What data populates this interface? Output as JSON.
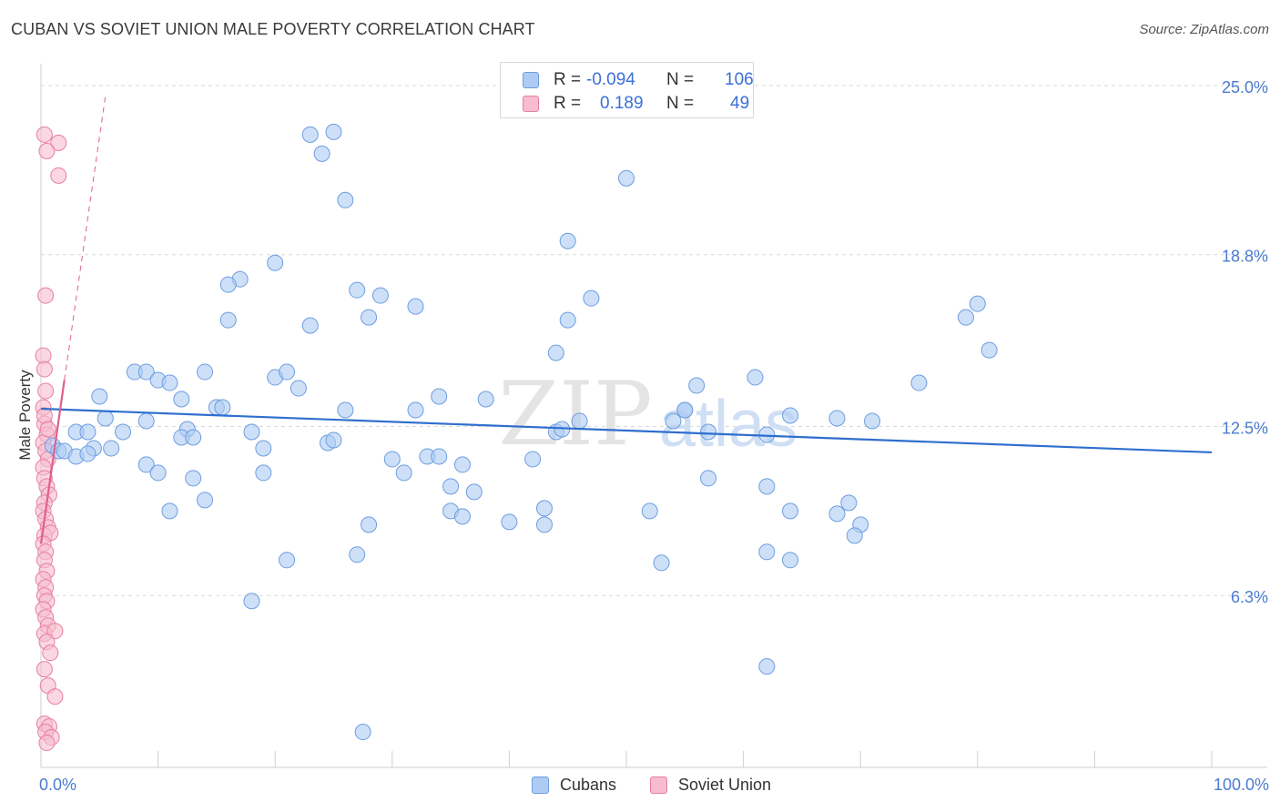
{
  "title": "CUBAN VS SOVIET UNION MALE POVERTY CORRELATION CHART",
  "source": "Source: ZipAtlas.com",
  "watermark": {
    "zip": "ZIP",
    "atlas": "atlas"
  },
  "legend": {
    "rows": [
      {
        "r_label": "R =",
        "r_value": "-0.094",
        "n_label": "N =",
        "n_value": "106"
      },
      {
        "r_label": "R =",
        "r_value": "0.189",
        "n_label": "N =",
        "n_value": "49"
      }
    ]
  },
  "colors": {
    "cubans_fill": "#aecbf3",
    "cubans_stroke": "#6d9de0",
    "cubans_line": "#2f6fce",
    "soviet_fill": "#f7bccd",
    "soviet_stroke": "#e87fa2",
    "soviet_line": "#e0608e",
    "tick_text": "#4a7bd0",
    "grid": "#d9d9d9"
  },
  "chart_data": {
    "type": "scatter",
    "title": "CUBAN VS SOVIET UNION MALE POVERTY CORRELATION CHART",
    "xlabel": "",
    "ylabel": "Male Poverty",
    "xlim": [
      0,
      100
    ],
    "ylim": [
      0,
      25.8
    ],
    "y_ticks": [
      {
        "value": 6.3,
        "label": "6.3%"
      },
      {
        "value": 12.5,
        "label": "12.5%"
      },
      {
        "value": 18.8,
        "label": "18.8%"
      },
      {
        "value": 25.0,
        "label": "25.0%"
      }
    ],
    "x_tick_labels": {
      "min": "0.0%",
      "max": "100.0%"
    },
    "grid": true,
    "legend_position": "top-center",
    "series": [
      {
        "name": "Cubans",
        "trend": {
          "x": [
            0,
            100
          ],
          "y": [
            13.15,
            11.55
          ]
        },
        "points": [
          [
            23.0,
            23.2
          ],
          [
            25.0,
            23.3
          ],
          [
            24.0,
            22.5
          ],
          [
            26.0,
            20.8
          ],
          [
            50.0,
            21.6
          ],
          [
            45.0,
            19.3
          ],
          [
            20.0,
            18.5
          ],
          [
            17.0,
            17.9
          ],
          [
            16.0,
            17.7
          ],
          [
            27.0,
            17.5
          ],
          [
            29.0,
            17.3
          ],
          [
            47.0,
            17.2
          ],
          [
            32.0,
            16.9
          ],
          [
            16.0,
            16.4
          ],
          [
            28.0,
            16.5
          ],
          [
            23.0,
            16.2
          ],
          [
            45.0,
            16.4
          ],
          [
            80.0,
            17.0
          ],
          [
            79.0,
            16.5
          ],
          [
            81.0,
            15.3
          ],
          [
            44.0,
            15.2
          ],
          [
            8.0,
            14.5
          ],
          [
            9.0,
            14.5
          ],
          [
            10.0,
            14.2
          ],
          [
            11.0,
            14.1
          ],
          [
            14.0,
            14.5
          ],
          [
            20.0,
            14.3
          ],
          [
            21.0,
            14.5
          ],
          [
            22.0,
            13.9
          ],
          [
            56.0,
            14.0
          ],
          [
            61.0,
            14.3
          ],
          [
            75.0,
            14.1
          ],
          [
            5.0,
            13.6
          ],
          [
            12.0,
            13.5
          ],
          [
            15.0,
            13.2
          ],
          [
            15.5,
            13.2
          ],
          [
            26.0,
            13.1
          ],
          [
            32.0,
            13.1
          ],
          [
            34.0,
            13.6
          ],
          [
            55.0,
            13.1
          ],
          [
            5.5,
            12.8
          ],
          [
            9.0,
            12.7
          ],
          [
            46.0,
            12.7
          ],
          [
            54.0,
            12.7
          ],
          [
            64.0,
            12.9
          ],
          [
            68.0,
            12.8
          ],
          [
            71.0,
            12.7
          ],
          [
            3.0,
            12.3
          ],
          [
            4.0,
            12.3
          ],
          [
            7.0,
            12.3
          ],
          [
            12.5,
            12.4
          ],
          [
            18.0,
            12.3
          ],
          [
            44.0,
            12.3
          ],
          [
            44.5,
            12.4
          ],
          [
            57.0,
            12.3
          ],
          [
            62.0,
            12.2
          ],
          [
            12.0,
            12.1
          ],
          [
            13.0,
            12.1
          ],
          [
            24.5,
            11.9
          ],
          [
            25.0,
            12.0
          ],
          [
            1.0,
            11.8
          ],
          [
            1.5,
            11.6
          ],
          [
            2.0,
            11.6
          ],
          [
            4.5,
            11.7
          ],
          [
            6.0,
            11.7
          ],
          [
            19.0,
            11.7
          ],
          [
            3.0,
            11.4
          ],
          [
            4.0,
            11.5
          ],
          [
            33.0,
            11.4
          ],
          [
            34.0,
            11.4
          ],
          [
            30.0,
            11.3
          ],
          [
            42.0,
            11.3
          ],
          [
            9.0,
            11.1
          ],
          [
            36.0,
            11.1
          ],
          [
            10.0,
            10.8
          ],
          [
            19.0,
            10.8
          ],
          [
            31.0,
            10.8
          ],
          [
            13.0,
            10.6
          ],
          [
            57.0,
            10.6
          ],
          [
            35.0,
            10.3
          ],
          [
            37.0,
            10.1
          ],
          [
            62.0,
            10.3
          ],
          [
            14.0,
            9.8
          ],
          [
            69.0,
            9.7
          ],
          [
            11.0,
            9.4
          ],
          [
            35.0,
            9.4
          ],
          [
            36.0,
            9.2
          ],
          [
            43.0,
            9.5
          ],
          [
            52.0,
            9.4
          ],
          [
            64.0,
            9.4
          ],
          [
            68.0,
            9.3
          ],
          [
            28.0,
            8.9
          ],
          [
            40.0,
            9.0
          ],
          [
            43.0,
            8.9
          ],
          [
            70.0,
            8.9
          ],
          [
            69.5,
            8.5
          ],
          [
            62.0,
            7.9
          ],
          [
            21.0,
            7.6
          ],
          [
            27.0,
            7.8
          ],
          [
            53.0,
            7.5
          ],
          [
            64.0,
            7.6
          ],
          [
            18.0,
            6.1
          ],
          [
            62.0,
            3.7
          ],
          [
            27.5,
            1.3
          ],
          [
            55.0,
            13.1
          ],
          [
            38.0,
            13.5
          ]
        ]
      },
      {
        "name": "Soviet Union",
        "trend": {
          "x": [
            0,
            2.0
          ],
          "y": [
            8.2,
            14.2
          ]
        },
        "trend_ext": {
          "x": [
            2.0,
            5.5
          ],
          "y": [
            14.2,
            24.6
          ]
        },
        "points": [
          [
            0.3,
            23.2
          ],
          [
            1.5,
            22.9
          ],
          [
            0.5,
            22.6
          ],
          [
            1.5,
            21.7
          ],
          [
            0.4,
            17.3
          ],
          [
            0.2,
            15.1
          ],
          [
            0.3,
            14.6
          ],
          [
            0.4,
            13.8
          ],
          [
            0.2,
            13.2
          ],
          [
            0.3,
            12.6
          ],
          [
            0.5,
            12.2
          ],
          [
            0.2,
            11.9
          ],
          [
            0.4,
            11.6
          ],
          [
            0.6,
            11.3
          ],
          [
            0.2,
            11.0
          ],
          [
            0.3,
            10.6
          ],
          [
            0.5,
            10.3
          ],
          [
            0.7,
            10.0
          ],
          [
            0.3,
            9.7
          ],
          [
            0.2,
            9.4
          ],
          [
            0.4,
            9.1
          ],
          [
            0.6,
            8.8
          ],
          [
            0.3,
            8.5
          ],
          [
            0.8,
            8.6
          ],
          [
            0.2,
            8.2
          ],
          [
            0.4,
            7.9
          ],
          [
            0.3,
            7.6
          ],
          [
            0.5,
            7.2
          ],
          [
            0.2,
            6.9
          ],
          [
            0.4,
            6.6
          ],
          [
            0.3,
            6.3
          ],
          [
            0.5,
            6.1
          ],
          [
            0.2,
            5.8
          ],
          [
            0.4,
            5.5
          ],
          [
            0.6,
            5.2
          ],
          [
            0.3,
            4.9
          ],
          [
            1.2,
            5.0
          ],
          [
            0.5,
            4.6
          ],
          [
            0.8,
            4.2
          ],
          [
            0.3,
            3.6
          ],
          [
            0.6,
            3.0
          ],
          [
            1.2,
            2.6
          ],
          [
            0.3,
            1.6
          ],
          [
            0.7,
            1.5
          ],
          [
            0.4,
            1.3
          ],
          [
            0.9,
            1.1
          ],
          [
            0.5,
            0.9
          ],
          [
            0.3,
            12.9
          ],
          [
            0.6,
            12.4
          ]
        ]
      }
    ]
  }
}
